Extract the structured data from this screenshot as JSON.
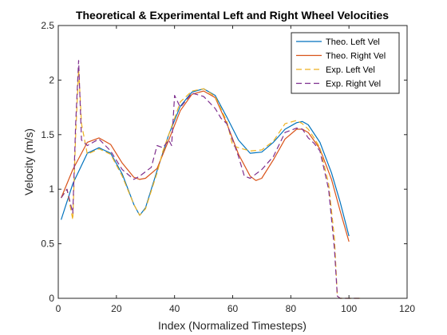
{
  "chart_data": {
    "type": "line",
    "title": "Theoretical & Experimental Left and Right Wheel Velocities",
    "xlabel": "Index (Normalized Timesteps)",
    "ylabel": "Velocity (m/s)",
    "xlim": [
      0,
      120
    ],
    "ylim": [
      0,
      2.5
    ],
    "xticks": [
      0,
      20,
      40,
      60,
      80,
      100,
      120
    ],
    "yticks": [
      0,
      0.5,
      1,
      1.5,
      2,
      2.5
    ],
    "xtick_labels": [
      "0",
      "20",
      "40",
      "60",
      "80",
      "100",
      "120"
    ],
    "ytick_labels": [
      "0",
      "0.5",
      "1",
      "1.5",
      "2",
      "2.5"
    ],
    "grid": false,
    "legend_position": "top-right",
    "series": [
      {
        "name": "Theo. Left Vel",
        "color": "#0072BD",
        "style": "solid",
        "x": [
          1,
          5,
          10,
          14,
          18,
          22,
          26,
          28,
          30,
          34,
          38,
          42,
          46,
          50,
          54,
          58,
          62,
          66,
          70,
          74,
          78,
          82,
          84,
          86,
          90,
          94,
          97,
          100
        ],
        "y": [
          0.72,
          1.05,
          1.33,
          1.38,
          1.33,
          1.14,
          0.86,
          0.76,
          0.83,
          1.17,
          1.5,
          1.76,
          1.89,
          1.92,
          1.86,
          1.66,
          1.45,
          1.33,
          1.34,
          1.43,
          1.55,
          1.61,
          1.62,
          1.59,
          1.43,
          1.15,
          0.88,
          0.57
        ]
      },
      {
        "name": "Theo. Right Vel",
        "color": "#D95319",
        "style": "solid",
        "x": [
          1,
          5,
          10,
          14,
          18,
          22,
          26,
          28,
          30,
          34,
          38,
          42,
          46,
          50,
          54,
          58,
          62,
          66,
          68,
          70,
          74,
          78,
          82,
          84,
          86,
          90,
          94,
          97,
          100
        ],
        "y": [
          0.92,
          1.18,
          1.43,
          1.47,
          1.41,
          1.24,
          1.11,
          1.09,
          1.1,
          1.19,
          1.45,
          1.72,
          1.87,
          1.9,
          1.84,
          1.6,
          1.32,
          1.12,
          1.08,
          1.1,
          1.27,
          1.46,
          1.55,
          1.55,
          1.52,
          1.37,
          1.09,
          0.8,
          0.52
        ]
      },
      {
        "name": "Exp. Left Vel",
        "color": "#EDB120",
        "style": "dashed",
        "x": [
          1,
          3,
          5,
          6,
          7,
          8,
          10,
          14,
          18,
          22,
          26,
          28,
          30,
          34,
          36,
          38,
          40,
          42,
          46,
          50,
          54,
          58,
          60,
          62,
          66,
          70,
          74,
          78,
          82,
          84,
          86,
          88,
          90,
          93,
          95,
          96,
          97,
          98,
          100,
          104
        ],
        "y": [
          0.92,
          1.0,
          0.72,
          1.5,
          2.1,
          1.6,
          1.32,
          1.37,
          1.32,
          1.12,
          0.86,
          0.76,
          0.82,
          1.15,
          1.35,
          1.5,
          1.65,
          1.8,
          1.9,
          1.92,
          1.85,
          1.62,
          1.4,
          1.38,
          1.35,
          1.36,
          1.44,
          1.6,
          1.63,
          1.6,
          1.55,
          1.47,
          1.38,
          1.05,
          0.55,
          0.02,
          0.0,
          0.0,
          0.0,
          0.0
        ]
      },
      {
        "name": "Exp. Right Vel",
        "color": "#7E2F8E",
        "style": "dashed",
        "x": [
          1,
          3,
          5,
          6,
          7,
          8,
          10,
          14,
          18,
          22,
          26,
          28,
          32,
          34,
          36,
          38,
          39,
          40,
          42,
          46,
          50,
          54,
          56,
          58,
          60,
          62,
          64,
          66,
          70,
          74,
          78,
          82,
          84,
          86,
          88,
          90,
          93,
          95,
          96,
          97,
          98,
          100,
          104
        ],
        "y": [
          0.92,
          1.0,
          0.78,
          1.6,
          2.18,
          1.45,
          1.4,
          1.46,
          1.35,
          1.18,
          1.09,
          1.12,
          1.2,
          1.4,
          1.38,
          1.45,
          1.4,
          1.86,
          1.75,
          1.88,
          1.85,
          1.74,
          1.65,
          1.6,
          1.45,
          1.3,
          1.12,
          1.1,
          1.18,
          1.3,
          1.52,
          1.56,
          1.55,
          1.47,
          1.42,
          1.35,
          1.0,
          0.45,
          0.02,
          0.0,
          0.0,
          0.0,
          0.0
        ]
      }
    ]
  }
}
